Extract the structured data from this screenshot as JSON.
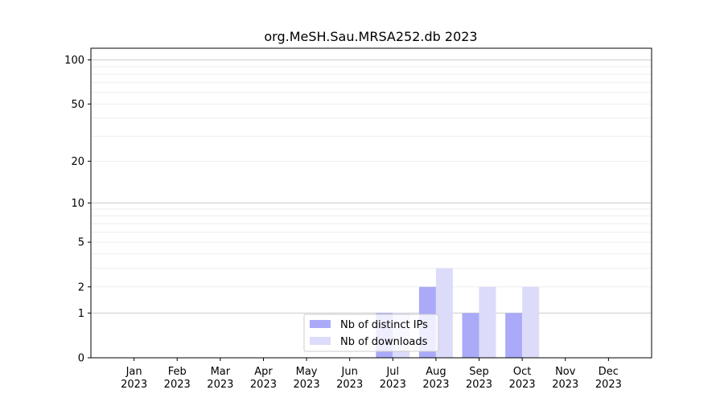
{
  "chart_data": {
    "type": "bar",
    "title": "org.MeSH.Sau.MRSA252.db 2023",
    "xlabel": "",
    "ylabel": "",
    "categories": [
      [
        "Jan",
        "2023"
      ],
      [
        "Feb",
        "2023"
      ],
      [
        "Mar",
        "2023"
      ],
      [
        "Apr",
        "2023"
      ],
      [
        "May",
        "2023"
      ],
      [
        "Jun",
        "2023"
      ],
      [
        "Jul",
        "2023"
      ],
      [
        "Aug",
        "2023"
      ],
      [
        "Sep",
        "2023"
      ],
      [
        "Oct",
        "2023"
      ],
      [
        "Nov",
        "2023"
      ],
      [
        "Dec",
        "2023"
      ]
    ],
    "series": [
      {
        "name": "Nb of distinct IPs",
        "color": "#aaaaf8",
        "values": [
          0,
          0,
          0,
          0,
          0,
          0,
          1,
          2,
          1,
          1,
          0,
          0
        ]
      },
      {
        "name": "Nb of downloads",
        "color": "#dcdcfa",
        "values": [
          0,
          0,
          0,
          0,
          0,
          0,
          1,
          3,
          2,
          2,
          0,
          0
        ]
      }
    ],
    "y_scale": "log(1+y)",
    "ylim": [
      0,
      120
    ],
    "yticks": [
      0,
      1,
      2,
      5,
      10,
      20,
      50,
      100
    ],
    "grid": "horizontal",
    "legend_position": "lower-center"
  }
}
